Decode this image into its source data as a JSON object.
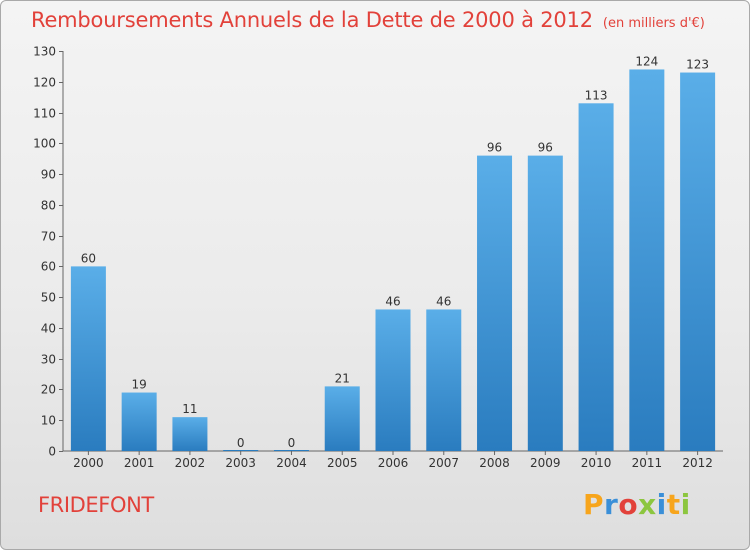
{
  "header": {
    "title": "Remboursements Annuels de la Dette de 2000 à 2012",
    "units": "(en milliers d'€)"
  },
  "footer": {
    "commune": "FRIDEFONT",
    "brand": "Proxiti",
    "brand_colors": [
      "#f7a51c",
      "#3a8fd8",
      "#e2413a",
      "#8cc63f",
      "#3a8fd8",
      "#f7a51c",
      "#8cc63f"
    ]
  },
  "colors": {
    "accent": "#e2413a",
    "bar_top": "#5aaee8",
    "bar_bottom": "#2a7cbf"
  },
  "chart_data": {
    "type": "bar",
    "categories": [
      "2000",
      "2001",
      "2002",
      "2003",
      "2004",
      "2005",
      "2006",
      "2007",
      "2008",
      "2009",
      "2010",
      "2011",
      "2012"
    ],
    "values": [
      60,
      19,
      11,
      0,
      0,
      21,
      46,
      46,
      96,
      96,
      113,
      124,
      123
    ],
    "title": "Remboursements Annuels de la Dette de 2000 à 2012",
    "subtitle": "(en milliers d'€)",
    "xlabel": "",
    "ylabel": "",
    "ylim": [
      0,
      130
    ],
    "yticks": [
      0,
      10,
      20,
      30,
      40,
      50,
      60,
      70,
      80,
      90,
      100,
      110,
      120,
      130
    ],
    "grid": false,
    "legend": "none"
  }
}
